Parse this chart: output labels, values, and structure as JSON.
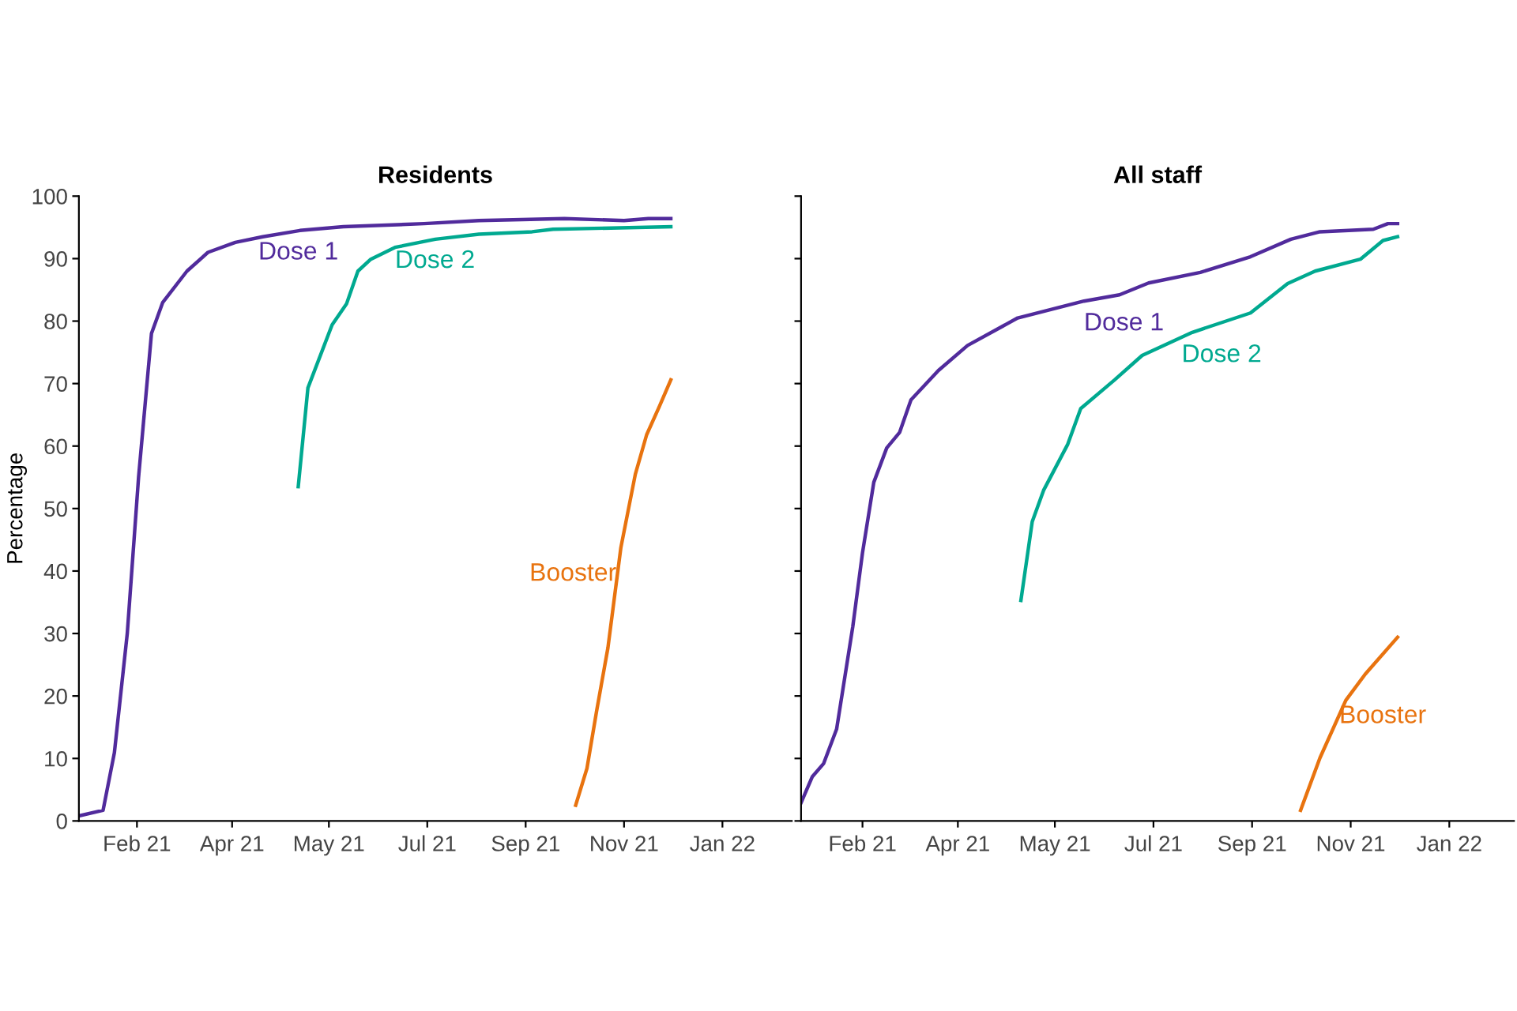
{
  "chart_data": [
    {
      "type": "line",
      "title": "Residents",
      "ylabel": "Percentage",
      "xlim": [
        "2020-12-27",
        "2022-03-14"
      ],
      "ylim": [
        0,
        100
      ],
      "yticks": [
        0,
        10,
        20,
        30,
        40,
        50,
        60,
        70,
        80,
        90,
        100
      ],
      "xticks": [
        {
          "value": "2021-02-01",
          "label": "Feb 21"
        },
        {
          "value": "2021-04-01",
          "label": "Apr 21"
        },
        {
          "value": "2021-05-31",
          "label": "May 21"
        },
        {
          "value": "2021-07-31",
          "label": "Jul 21"
        },
        {
          "value": "2021-09-30",
          "label": "Sep 21"
        },
        {
          "value": "2021-11-30",
          "label": "Nov 21"
        },
        {
          "value": "2022-01-30",
          "label": "Jan 22"
        }
      ],
      "grid": false,
      "legend": false,
      "marker": "none",
      "line_style": "solid",
      "series": [
        {
          "name": "Dose 1",
          "color": "#512b9c",
          "x": [
            "2020-12-27",
            "2021-01-11",
            "2021-01-18",
            "2021-01-26",
            "2021-02-02",
            "2021-02-10",
            "2021-02-17",
            "2021-03-04",
            "2021-03-17",
            "2021-04-03",
            "2021-04-20",
            "2021-05-13",
            "2021-06-09",
            "2021-07-29",
            "2021-09-01",
            "2021-10-24",
            "2021-11-30",
            "2021-12-15",
            "2021-12-29"
          ],
          "values": [
            0.8,
            1.7,
            10.9,
            30,
            55,
            78,
            83,
            88,
            91,
            92.6,
            93.5,
            94.5,
            95.1,
            95.6,
            96.1,
            96.4,
            96.1,
            96.4,
            96.4
          ]
        },
        {
          "name": "Dose 2",
          "color": "#00a990",
          "x": [
            "2021-05-12",
            "2021-05-18",
            "2021-06-02",
            "2021-06-11",
            "2021-06-18",
            "2021-06-26",
            "2021-07-11",
            "2021-08-05",
            "2021-09-01",
            "2021-10-04",
            "2021-10-17",
            "2021-12-29"
          ],
          "values": [
            53.5,
            69.3,
            79.4,
            82.8,
            88,
            89.9,
            91.8,
            93.1,
            93.9,
            94.3,
            94.7,
            95.1
          ]
        },
        {
          "name": "Booster",
          "color": "#e8730f",
          "x": [
            "2021-10-31",
            "2021-11-07",
            "2021-11-13",
            "2021-11-20",
            "2021-11-28",
            "2021-12-07",
            "2021-12-14",
            "2021-12-22",
            "2021-12-29"
          ],
          "values": [
            2.5,
            8.4,
            17.6,
            27.7,
            43.7,
            55.5,
            61.8,
            66.4,
            70.6
          ]
        }
      ]
    },
    {
      "type": "line",
      "title": "All staff",
      "xlim": [
        "2020-12-25",
        "2022-03-11"
      ],
      "ylim": [
        0,
        100
      ],
      "yticks": [
        {
          "value": 0,
          "label": null
        },
        {
          "value": 10,
          "label": null
        },
        {
          "value": 20,
          "label": null
        },
        {
          "value": 30,
          "label": null
        },
        {
          "value": 40,
          "label": null
        },
        {
          "value": 50,
          "label": null
        },
        {
          "value": 60,
          "label": null
        },
        {
          "value": 70,
          "label": null
        },
        {
          "value": 80,
          "label": null
        },
        {
          "value": 90,
          "label": null
        },
        {
          "value": 100,
          "label": null
        }
      ],
      "xticks": [
        {
          "value": "2021-02-01",
          "label": "Feb 21"
        },
        {
          "value": "2021-04-01",
          "label": "Apr 21"
        },
        {
          "value": "2021-05-31",
          "label": "May 21"
        },
        {
          "value": "2021-07-31",
          "label": "Jul 21"
        },
        {
          "value": "2021-09-30",
          "label": "Sep 21"
        },
        {
          "value": "2021-11-30",
          "label": "Nov 21"
        },
        {
          "value": "2022-01-30",
          "label": "Jan 22"
        }
      ],
      "tick_labels": "x",
      "grid": false,
      "legend": false,
      "marker": "none",
      "line_style": "solid",
      "series": [
        {
          "name": "Dose 1",
          "color": "#512b9c",
          "x": [
            "2020-12-25",
            "2021-01-01",
            "2021-01-08",
            "2021-01-16",
            "2021-01-26",
            "2021-02-01",
            "2021-02-08",
            "2021-02-16",
            "2021-02-24",
            "2021-03-03",
            "2021-03-20",
            "2021-04-07",
            "2021-05-08",
            "2021-06-18",
            "2021-07-10",
            "2021-07-28",
            "2021-08-29",
            "2021-09-29",
            "2021-10-24",
            "2021-11-11",
            "2021-12-14",
            "2021-12-23",
            "2021-12-29"
          ],
          "values": [
            2.9,
            7.1,
            9.2,
            14.7,
            31.1,
            42.9,
            54.2,
            59.7,
            62.2,
            67.4,
            72.1,
            76.1,
            80.5,
            83.2,
            84.2,
            86.1,
            87.8,
            90.3,
            93.1,
            94.3,
            94.7,
            95.6,
            95.6
          ]
        },
        {
          "name": "Dose 2",
          "color": "#00a990",
          "x": [
            "2021-05-10",
            "2021-05-17",
            "2021-05-24",
            "2021-06-08",
            "2021-06-16",
            "2021-07-07",
            "2021-07-24",
            "2021-08-24",
            "2021-09-29",
            "2021-10-22",
            "2021-11-08",
            "2021-12-06",
            "2021-12-20",
            "2021-12-29"
          ],
          "values": [
            35.3,
            47.9,
            52.9,
            60.3,
            66.0,
            70.6,
            74.5,
            78.2,
            81.3,
            86.0,
            88.0,
            89.9,
            92.9,
            93.5
          ]
        },
        {
          "name": "Booster",
          "color": "#e8730f",
          "x": [
            "2021-10-30",
            "2021-11-11",
            "2021-11-27",
            "2021-12-09",
            "2021-12-29"
          ],
          "values": [
            1.7,
            10.1,
            19.3,
            23.5,
            29.4
          ]
        }
      ]
    }
  ]
}
